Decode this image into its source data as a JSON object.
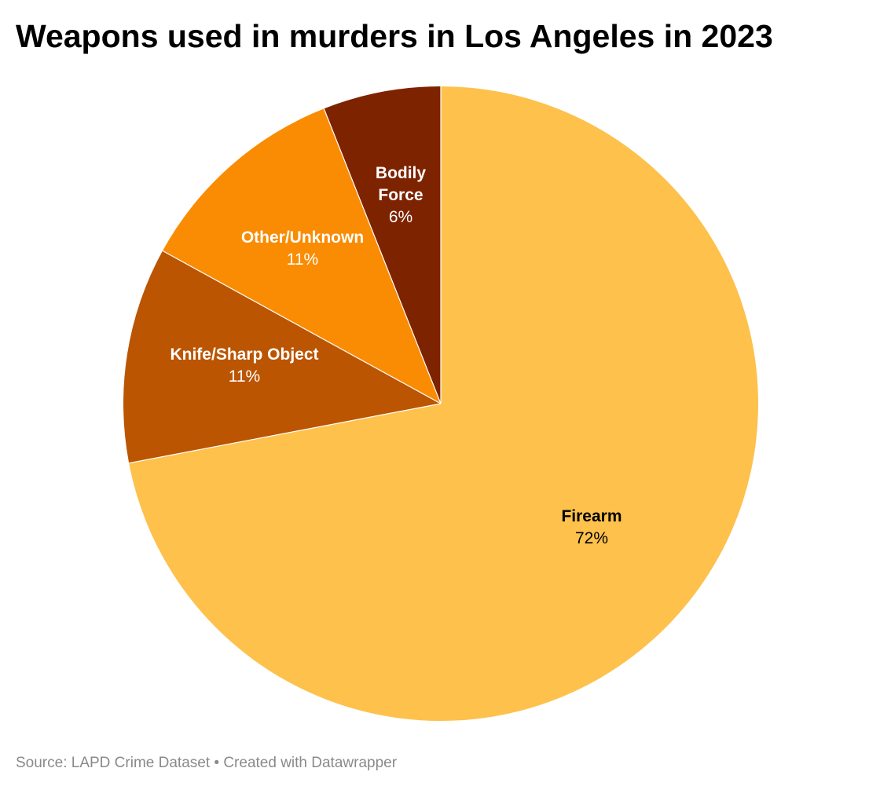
{
  "title": "Weapons used in murders in Los Angeles in 2023",
  "footer": {
    "source_prefix": "Source: ",
    "source_name": "LAPD Crime Dataset",
    "separator": " • ",
    "credit": "Created with Datawrapper"
  },
  "chart_data": {
    "type": "pie",
    "title": "Weapons used in murders in Los Angeles in 2023",
    "start_angle": "12 o'clock, clockwise",
    "slices": [
      {
        "name": "Firearm",
        "label_lines": [
          "Firearm"
        ],
        "value": 72,
        "value_label": "72%",
        "color": "#fdc14c",
        "label_color": "#000000"
      },
      {
        "name": "Knife/Sharp Object",
        "label_lines": [
          "Knife/Sharp Object"
        ],
        "value": 11,
        "value_label": "11%",
        "color": "#bb5502",
        "label_color": "#ffffff"
      },
      {
        "name": "Other/Unknown",
        "label_lines": [
          "Other/Unknown"
        ],
        "value": 11,
        "value_label": "11%",
        "color": "#f98c02",
        "label_color": "#ffffff"
      },
      {
        "name": "Bodily Force",
        "label_lines": [
          "Bodily",
          "Force"
        ],
        "value": 6,
        "value_label": "6%",
        "color": "#7e2300",
        "label_color": "#ffffff"
      }
    ]
  }
}
